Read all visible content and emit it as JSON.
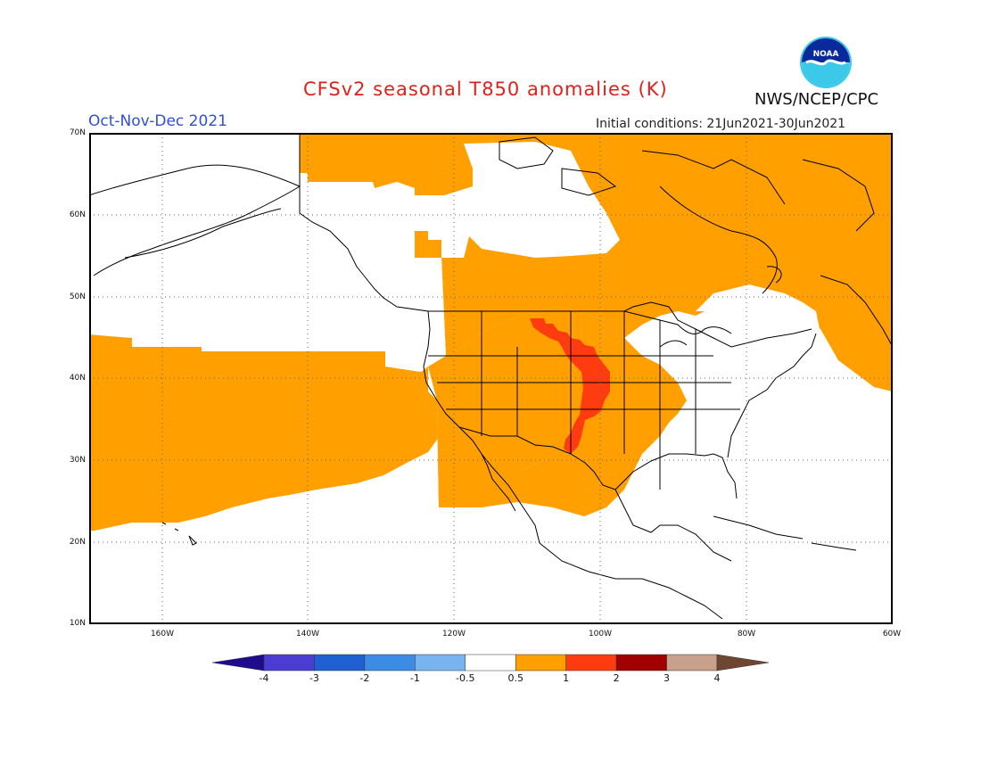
{
  "header": {
    "title": "CFSv2 seasonal T850 anomalies (K)",
    "season": "Oct-Nov-Dec 2021",
    "initial_conditions": "Initial conditions: 21Jun2021-30Jun2021",
    "organization": "NWS/NCEP/CPC",
    "logo_text": "NOAA"
  },
  "map": {
    "projection": "lat-lon",
    "lat_range": [
      10,
      70
    ],
    "lon_range": [
      -175,
      -60
    ],
    "lat_labels": [
      "70N",
      "60N",
      "50N",
      "40N",
      "30N",
      "20N",
      "10N"
    ],
    "lon_labels": [
      "160W",
      "140W",
      "120W",
      "100W",
      "80W",
      "60W"
    ],
    "gridlines": "dotted",
    "anomaly_regions": [
      {
        "level": "0.5 to 1",
        "color": "#ff9f00",
        "description": "warm anomaly over western/central North America, NE Pacific and Canada"
      },
      {
        "level": "1 to 2",
        "color": "#ff3b10",
        "description": "narrow band over the central Great Plains"
      }
    ]
  },
  "colorbar": {
    "labels": [
      "-4",
      "-3",
      "-2",
      "-1",
      "-0.5",
      "0.5",
      "1",
      "2",
      "3",
      "4"
    ],
    "colors": [
      "#1e0c8c",
      "#4b3cd2",
      "#1e5fd2",
      "#3c8ce6",
      "#78b4f0",
      "#ffffff",
      "#ff9f00",
      "#ff3b10",
      "#a00000",
      "#c8a08c",
      "#6e4632"
    ]
  }
}
